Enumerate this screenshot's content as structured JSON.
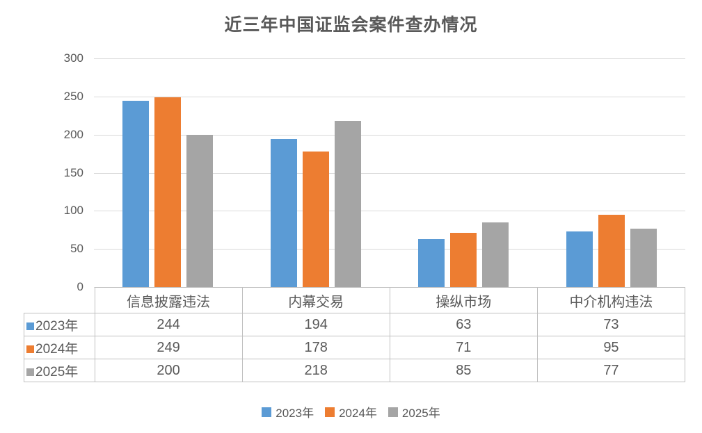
{
  "title": "近三年中国证监会案件查办情况",
  "colors": {
    "series_2023": "#5B9BD5",
    "series_2024": "#ED7D31",
    "series_2025": "#A5A5A5",
    "gridline": "#D9D9D9",
    "text": "#595959",
    "table_border": "#BFBFBF",
    "background": "#FFFFFF"
  },
  "chart_data": {
    "type": "bar",
    "title": "近三年中国证监会案件查办情况",
    "categories": [
      "信息披露违法",
      "内幕交易",
      "操纵市场",
      "中介机构违法"
    ],
    "series": [
      {
        "name": "2023年",
        "color": "#5B9BD5",
        "values": [
          244,
          194,
          63,
          73
        ]
      },
      {
        "name": "2024年",
        "color": "#ED7D31",
        "values": [
          249,
          178,
          71,
          95
        ]
      },
      {
        "name": "2025年",
        "color": "#A5A5A5",
        "values": [
          200,
          218,
          85,
          77
        ]
      }
    ],
    "xlabel": "",
    "ylabel": "",
    "ylim": [
      0,
      300
    ],
    "yticks": [
      0,
      50,
      100,
      150,
      200,
      250,
      300
    ],
    "grid": true,
    "legend_position": "bottom",
    "legend_entries": [
      "2023年",
      "2024年",
      "2025年"
    ],
    "data_table_shown": true
  }
}
